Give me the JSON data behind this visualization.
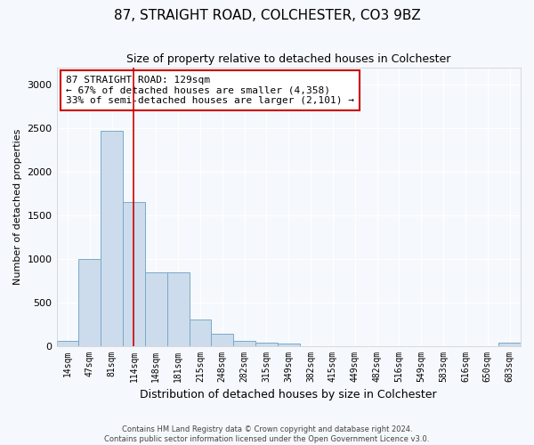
{
  "title": "87, STRAIGHT ROAD, COLCHESTER, CO3 9BZ",
  "subtitle": "Size of property relative to detached houses in Colchester",
  "xlabel": "Distribution of detached houses by size in Colchester",
  "ylabel": "Number of detached properties",
  "categories": [
    "14sqm",
    "47sqm",
    "81sqm",
    "114sqm",
    "148sqm",
    "181sqm",
    "215sqm",
    "248sqm",
    "282sqm",
    "315sqm",
    "349sqm",
    "382sqm",
    "415sqm",
    "449sqm",
    "482sqm",
    "516sqm",
    "549sqm",
    "583sqm",
    "616sqm",
    "650sqm",
    "683sqm"
  ],
  "values": [
    60,
    1000,
    2470,
    1650,
    840,
    840,
    300,
    140,
    60,
    40,
    30,
    0,
    0,
    0,
    0,
    0,
    0,
    0,
    0,
    0,
    40
  ],
  "bar_color": "#ccdcec",
  "bar_edge_color": "#7aaac8",
  "vline_x": 3,
  "vline_color": "#cc0000",
  "annotation_text": "87 STRAIGHT ROAD: 129sqm\n← 67% of detached houses are smaller (4,358)\n33% of semi-detached houses are larger (2,101) →",
  "annotation_box_color": "#ffffff",
  "annotation_box_edge": "#cc0000",
  "ylim": [
    0,
    3200
  ],
  "yticks": [
    0,
    500,
    1000,
    1500,
    2000,
    2500,
    3000
  ],
  "footer": "Contains HM Land Registry data © Crown copyright and database right 2024.\nContains public sector information licensed under the Open Government Licence v3.0.",
  "bg_color": "#f5f8fc",
  "plot_bg_color": "#f5f8fc",
  "title_fontsize": 11,
  "xlabel_fontsize": 9,
  "ylabel_fontsize": 8,
  "tick_fontsize": 7,
  "annotation_fontsize": 8,
  "footer_fontsize": 6,
  "grid_color": "#ffffff",
  "spine_color": "#cccccc"
}
